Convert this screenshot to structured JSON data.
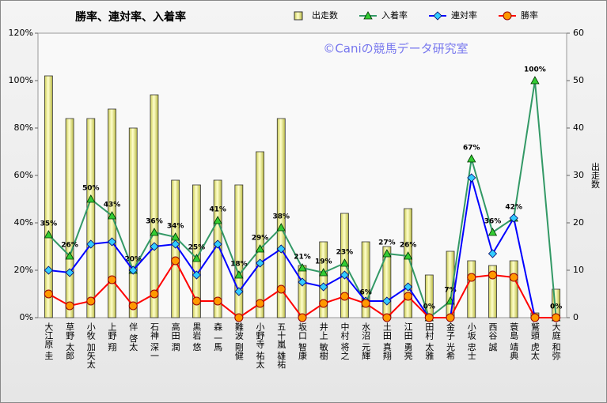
{
  "chart_data": {
    "type": "combo",
    "title": "勝率、連対率、入着率",
    "watermark": "©Caniの競馬データ研究室",
    "y2_label": "出走数",
    "legend": "top",
    "grid": false,
    "categories": [
      "大江原 圭",
      "草野 太郎",
      "小牧 加矢太",
      "上野 翔",
      "伴 啓太",
      "石神 深一",
      "高田 潤",
      "黒岩 悠",
      "森 一馬",
      "難波 剛健",
      "小野寺 祐太",
      "五十嵐 雄祐",
      "坂口 智康",
      "井上 敏樹",
      "中村 将之",
      "水沼 元輝",
      "土田 真翔",
      "江田 勇亮",
      "田村 太雅",
      "金子 光希",
      "小坂 忠士",
      "西谷 誠",
      "蓑島 靖典",
      "鷲頭 虎太",
      "大庭 和弥"
    ],
    "ylim": [
      0,
      120
    ],
    "yticks": [
      {
        "value": 0,
        "label": "0%"
      },
      {
        "value": 20,
        "label": "20%"
      },
      {
        "value": 40,
        "label": "40%"
      },
      {
        "value": 60,
        "label": "60%"
      },
      {
        "value": 80,
        "label": "80%"
      },
      {
        "value": 100,
        "label": "100%"
      },
      {
        "value": 120,
        "label": "120%"
      }
    ],
    "y2lim": [
      0,
      60
    ],
    "y2ticks": [
      0,
      10,
      20,
      30,
      40,
      50,
      60
    ],
    "series": [
      {
        "name": "出走数",
        "type": "bar",
        "axis": "y2",
        "color": "#ffff99",
        "values": [
          51,
          42,
          42,
          44,
          40,
          47,
          29,
          28,
          29,
          28,
          35,
          42,
          11,
          16,
          22,
          16,
          15,
          23,
          9,
          14,
          12,
          11,
          12,
          1,
          6
        ]
      },
      {
        "name": "入着率",
        "type": "line",
        "color": "#339966",
        "marker": "triangle",
        "values": [
          35,
          26,
          50,
          43,
          20,
          36,
          34,
          25,
          41,
          18,
          29,
          38,
          21,
          19,
          23,
          6,
          27,
          26,
          0,
          7,
          67,
          36,
          42,
          100,
          0
        ],
        "value_labels": [
          "35%",
          "26%",
          "50%",
          "43%",
          "20%",
          "36%",
          "34%",
          "25%",
          "41%",
          "18%",
          "29%",
          "38%",
          "21%",
          "19%",
          "23%",
          "6%",
          "27%",
          "26%",
          "0%",
          "7%",
          "67%",
          "36%",
          "42%",
          "100%",
          "0%"
        ]
      },
      {
        "name": "連対率",
        "type": "line",
        "color": "#0000ff",
        "marker": "diamond",
        "values": [
          20,
          19,
          31,
          32,
          20,
          30,
          31,
          18,
          31,
          11,
          23,
          29,
          15,
          13,
          18,
          7,
          7,
          13,
          0,
          0,
          59,
          27,
          42,
          0,
          0
        ]
      },
      {
        "name": "勝率",
        "type": "line",
        "color": "#ff0000",
        "marker": "circle",
        "values": [
          10,
          5,
          7,
          16,
          5,
          10,
          24,
          7,
          7,
          0,
          6,
          12,
          0,
          6,
          9,
          6,
          0,
          9,
          0,
          0,
          17,
          18,
          17,
          0,
          0
        ]
      }
    ]
  }
}
